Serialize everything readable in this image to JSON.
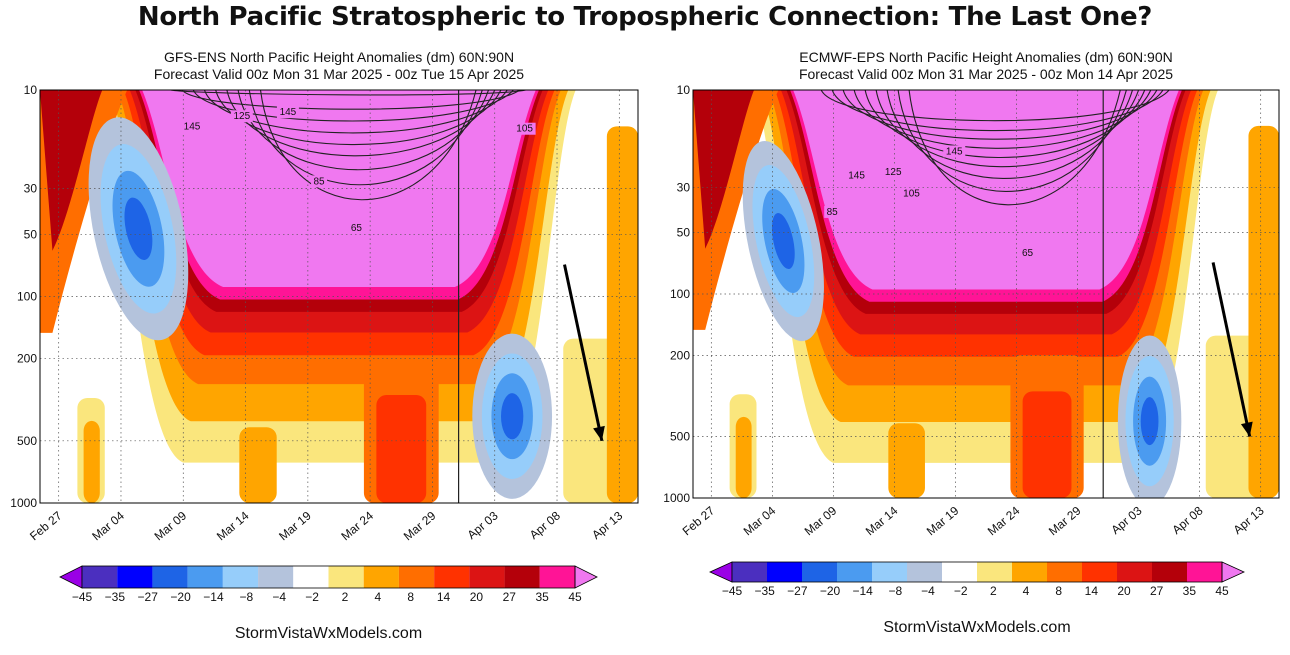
{
  "title": "North Pacific Stratospheric to Tropospheric Connection: The Last One?",
  "colors": {
    "cmap": [
      "#9a00e6",
      "#4b2fbf",
      "#0000ff",
      "#1e64e6",
      "#4b9bf0",
      "#96cdfa",
      "#b4c3dc",
      "#ffffff",
      "#fae67d",
      "#ffa500",
      "#ff6e00",
      "#ff3200",
      "#dc1414",
      "#b4000a",
      "#ff1496",
      "#f078f0"
    ]
  },
  "chart_data": [
    {
      "type": "heatmap",
      "title_line1": "GFS-ENS North Pacific Height Anomalies (dm) 60N:90N",
      "title_line2": "Forecast Valid 00z Mon 31 Mar 2025 - 00z Tue 15 Apr 2025",
      "x_ticks": [
        "Feb 27",
        "Mar 04",
        "Mar 09",
        "Mar 14",
        "Mar 19",
        "Mar 24",
        "Mar 29",
        "Apr 03",
        "Apr 08",
        "Apr 13"
      ],
      "x_tick_days": [
        0,
        5,
        10,
        15,
        20,
        25,
        30,
        35,
        40,
        45
      ],
      "x_range_days": [
        -1.5,
        46.5
      ],
      "forecast_start_day": 32.1,
      "y_ticks": [
        10,
        30,
        50,
        100,
        200,
        500,
        1000
      ],
      "y_range_hPa": [
        10,
        1000
      ],
      "y_scale": "log",
      "colorbar_levels": [
        -45,
        -35,
        -27,
        -20,
        -14,
        -8,
        -4,
        -2,
        2,
        4,
        8,
        14,
        20,
        27,
        35,
        45
      ],
      "contour_labels": [
        {
          "text": "145",
          "day": 10.7,
          "p": 15
        },
        {
          "text": "125",
          "day": 14.7,
          "p": 13.4
        },
        {
          "text": "145",
          "day": 18.4,
          "p": 12.8
        },
        {
          "text": "105",
          "day": 37.4,
          "p": 15.4
        },
        {
          "text": "85",
          "day": 20.9,
          "p": 27.7
        },
        {
          "text": "65",
          "day": 23.9,
          "p": 46.6
        }
      ],
      "arrow": {
        "from_day": 40.6,
        "from_p": 70,
        "to_day": 43.6,
        "to_p": 500
      },
      "features": {
        "pink": {
          "p": 90
        },
        "blue": [
          {
            "day": 6.4,
            "p": 47,
            "half_width_days": 3.6,
            "half_height_log": 0.55
          },
          {
            "day": 36.4,
            "p": 380,
            "half_width_days": 3.2,
            "half_height_log": 0.4
          }
        ]
      }
    },
    {
      "type": "heatmap",
      "title_line1": "ECMWF-EPS North Pacific Height Anomalies (dm) 60N:90N",
      "title_line2": "Forecast Valid 00z Mon 31 Mar 2025 - 00z Mon 14 Apr 2025",
      "x_ticks": [
        "Feb 27",
        "Mar 04",
        "Mar 09",
        "Mar 14",
        "Mar 19",
        "Mar 24",
        "Mar 29",
        "Apr 03",
        "Apr 08",
        "Apr 13"
      ],
      "x_tick_days": [
        0,
        5,
        10,
        15,
        20,
        25,
        30,
        35,
        40,
        45
      ],
      "x_range_days": [
        -1.5,
        46.5
      ],
      "forecast_start_day": 32.1,
      "y_ticks": [
        10,
        30,
        50,
        100,
        200,
        500,
        1000
      ],
      "y_range_hPa": [
        10,
        1000
      ],
      "y_scale": "log",
      "colorbar_levels": [
        -45,
        -35,
        -27,
        -20,
        -14,
        -8,
        -4,
        -2,
        2,
        4,
        8,
        14,
        20,
        27,
        35,
        45
      ],
      "contour_labels": [
        {
          "text": "145",
          "day": 19.9,
          "p": 20
        },
        {
          "text": "145",
          "day": 11.9,
          "p": 26.3
        },
        {
          "text": "125",
          "day": 14.9,
          "p": 25.3
        },
        {
          "text": "105",
          "day": 16.4,
          "p": 32.2
        },
        {
          "text": "85",
          "day": 9.9,
          "p": 39.6
        },
        {
          "text": "65",
          "day": 25.9,
          "p": 63
        }
      ],
      "arrow": {
        "from_day": 41.1,
        "from_p": 70,
        "to_day": 44.1,
        "to_p": 500
      },
      "features": {
        "pink": {
          "p": 95
        },
        "blue": [
          {
            "day": 5.9,
            "p": 55,
            "half_width_days": 2.9,
            "half_height_log": 0.5
          },
          {
            "day": 35.9,
            "p": 420,
            "half_width_days": 2.6,
            "half_height_log": 0.42
          }
        ]
      }
    }
  ],
  "footer": "StormVistaWxModels.com"
}
